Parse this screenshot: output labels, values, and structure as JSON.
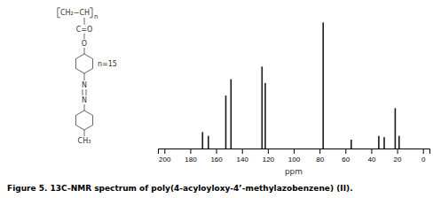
{
  "chart_data": {
    "type": "bar",
    "title": "Figure 5. 13C-NMR spectrum of poly(4-acyloyloxy-4’-methylazobenzene) (II).",
    "x_label": "ppm",
    "x": [
      170.5,
      166.0,
      152.5,
      148.5,
      124.5,
      122.0,
      77.2,
      55.5,
      34.2,
      30.0,
      21.5,
      18.5
    ],
    "values": [
      0.13,
      0.1,
      0.42,
      0.55,
      0.65,
      0.52,
      1.0,
      0.07,
      0.1,
      0.09,
      0.32,
      0.1
    ],
    "color": "#1a1a1a",
    "xlim": [
      205,
      -5
    ],
    "xticks": [
      200,
      180,
      160,
      140,
      120,
      100,
      80,
      60,
      40,
      20,
      0
    ],
    "ylim": [
      0,
      1.08
    ],
    "tick_labels": "x",
    "annotations": [
      "CH₂−CH",
      "n",
      "C=O",
      "O",
      "n=15",
      "N",
      "N",
      "CH₃"
    ]
  }
}
